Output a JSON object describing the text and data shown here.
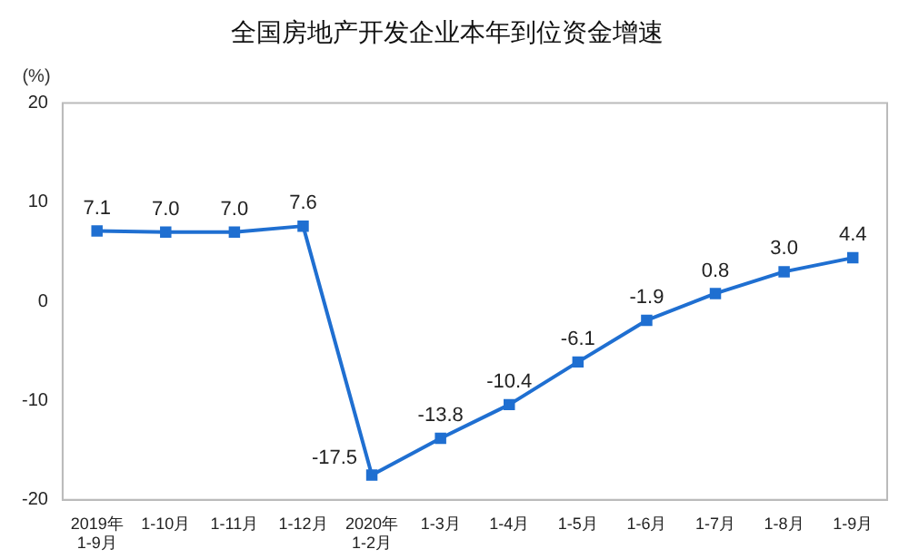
{
  "chart_data": {
    "type": "line",
    "title": "全国房地产开发企业本年到位资金增速",
    "ylabel": "(%)",
    "categories": [
      "2019年\n1-9月",
      "1-10月",
      "1-11月",
      "1-12月",
      "2020年\n1-2月",
      "1-3月",
      "1-4月",
      "1-5月",
      "1-6月",
      "1-7月",
      "1-8月",
      "1-9月"
    ],
    "series": [
      {
        "color": "#1f6fd1",
        "values": [
          7.1,
          7.0,
          7.0,
          7.6,
          -17.5,
          -13.8,
          -10.4,
          -6.1,
          -1.9,
          0.8,
          3.0,
          4.4
        ],
        "value_labels": [
          "7.1",
          "7.0",
          "7.0",
          "7.6",
          "-17.5",
          "-13.8",
          "-10.4",
          "-6.1",
          "-1.9",
          "0.8",
          "3.0",
          "4.4"
        ]
      }
    ],
    "ylim": [
      -20,
      20
    ],
    "yticks": [
      -20,
      -10,
      0,
      10,
      20
    ],
    "grid": false,
    "legend": false,
    "marker": "square",
    "line_style": "solid"
  }
}
